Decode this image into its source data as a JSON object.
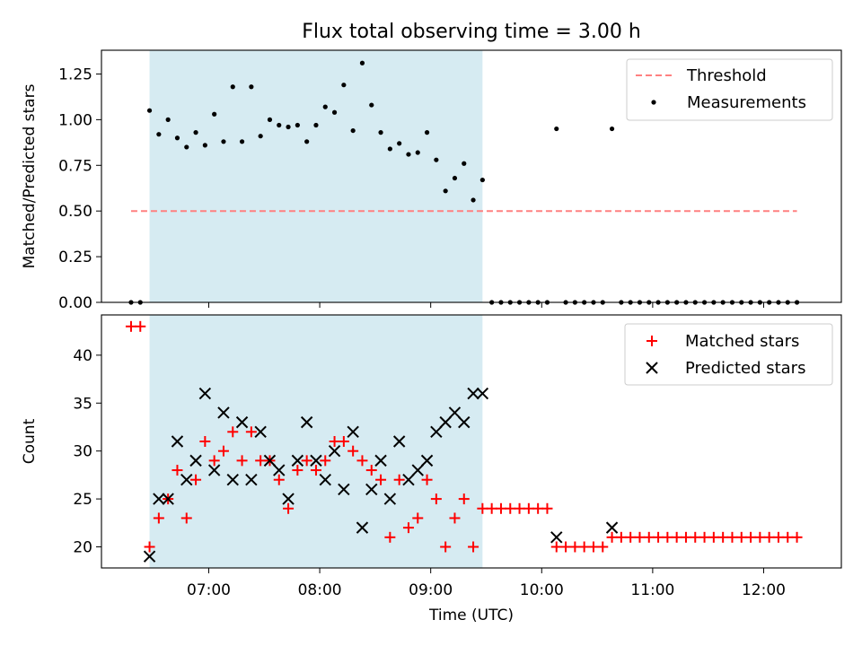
{
  "title": "Flux total observing time = 3.00 h",
  "colors": {
    "shade": "#add8e6",
    "threshold": "#ff8080",
    "matched": "#ff0000",
    "predicted": "#000000",
    "measurement": "#000000"
  },
  "chart_data": [
    {
      "type": "scatter",
      "ylabel": "Matched/Predicted stars",
      "xlabel": "",
      "xlim": [
        "06:02",
        "12:42"
      ],
      "ylim": [
        0,
        1.38
      ],
      "yticks": [
        "0.00",
        "0.25",
        "0.50",
        "0.75",
        "1.00",
        "1.25"
      ],
      "shaded_span": [
        "06:28",
        "09:28"
      ],
      "legend_position": "upper right",
      "threshold": {
        "name": "Threshold",
        "value": 0.5,
        "x_range": [
          "06:18",
          "12:18"
        ]
      },
      "series": [
        {
          "name": "Measurements",
          "x": [
            "06:18",
            "06:23",
            "06:28",
            "06:33",
            "06:38",
            "06:43",
            "06:48",
            "06:53",
            "06:58",
            "07:03",
            "07:08",
            "07:13",
            "07:18",
            "07:23",
            "07:28",
            "07:33",
            "07:38",
            "07:43",
            "07:48",
            "07:53",
            "07:58",
            "08:03",
            "08:08",
            "08:13",
            "08:18",
            "08:23",
            "08:28",
            "08:33",
            "08:38",
            "08:43",
            "08:48",
            "08:53",
            "08:58",
            "09:03",
            "09:08",
            "09:13",
            "09:18",
            "09:23",
            "09:28",
            "09:33",
            "09:38",
            "09:43",
            "09:48",
            "09:53",
            "09:58",
            "10:03",
            "10:08",
            "10:13",
            "10:18",
            "10:23",
            "10:28",
            "10:33",
            "10:38",
            "10:43",
            "10:48",
            "10:53",
            "10:58",
            "11:03",
            "11:08",
            "11:13",
            "11:18",
            "11:23",
            "11:28",
            "11:33",
            "11:38",
            "11:43",
            "11:48",
            "11:53",
            "11:58",
            "12:03",
            "12:08",
            "12:13",
            "12:18"
          ],
          "y": [
            0.0,
            0.0,
            1.05,
            0.92,
            1.0,
            0.9,
            0.85,
            0.93,
            0.86,
            1.03,
            0.88,
            1.18,
            0.88,
            1.18,
            0.91,
            1.0,
            0.97,
            0.96,
            0.97,
            0.88,
            0.97,
            1.07,
            1.04,
            1.19,
            0.94,
            1.31,
            1.08,
            0.93,
            0.84,
            0.87,
            0.81,
            0.82,
            0.93,
            0.78,
            0.61,
            0.68,
            0.76,
            0.56,
            0.67,
            0.0,
            0.0,
            0.0,
            0.0,
            0.0,
            0.0,
            0.0,
            0.95,
            0.0,
            0.0,
            0.0,
            0.0,
            0.0,
            0.95,
            0.0,
            0.0,
            0.0,
            0.0,
            0.0,
            0.0,
            0.0,
            0.0,
            0.0,
            0.0,
            0.0,
            0.0,
            0.0,
            0.0,
            0.0,
            0.0,
            0.0,
            0.0,
            0.0,
            0.0
          ]
        }
      ]
    },
    {
      "type": "scatter",
      "ylabel": "Count",
      "xlabel": "Time (UTC)",
      "xlim": [
        "06:02",
        "12:42"
      ],
      "ylim": [
        17.8,
        44.2
      ],
      "yticks": [
        "20",
        "25",
        "30",
        "35",
        "40"
      ],
      "xticks": [
        "07:00",
        "08:00",
        "09:00",
        "10:00",
        "11:00",
        "12:00"
      ],
      "shaded_span": [
        "06:28",
        "09:28"
      ],
      "legend_position": "upper right",
      "series": [
        {
          "name": "Matched stars",
          "marker": "plus",
          "x": [
            "06:18",
            "06:23",
            "06:28",
            "06:33",
            "06:38",
            "06:43",
            "06:48",
            "06:53",
            "06:58",
            "07:03",
            "07:08",
            "07:13",
            "07:18",
            "07:23",
            "07:28",
            "07:33",
            "07:38",
            "07:43",
            "07:48",
            "07:53",
            "07:58",
            "08:03",
            "08:08",
            "08:13",
            "08:18",
            "08:23",
            "08:28",
            "08:33",
            "08:38",
            "08:43",
            "08:48",
            "08:53",
            "08:58",
            "09:03",
            "09:08",
            "09:13",
            "09:18",
            "09:23",
            "09:28",
            "09:33",
            "09:38",
            "09:43",
            "09:48",
            "09:53",
            "09:58",
            "10:03",
            "10:08",
            "10:13",
            "10:18",
            "10:23",
            "10:28",
            "10:33",
            "10:38",
            "10:43",
            "10:48",
            "10:53",
            "10:58",
            "11:03",
            "11:08",
            "11:13",
            "11:18",
            "11:23",
            "11:28",
            "11:33",
            "11:38",
            "11:43",
            "11:48",
            "11:53",
            "11:58",
            "12:03",
            "12:08",
            "12:13",
            "12:18"
          ],
          "y": [
            43,
            43,
            20,
            23,
            25,
            28,
            23,
            27,
            31,
            29,
            30,
            32,
            29,
            32,
            29,
            29,
            27,
            24,
            28,
            29,
            28,
            29,
            31,
            31,
            30,
            29,
            28,
            27,
            21,
            27,
            22,
            23,
            27,
            25,
            20,
            23,
            25,
            20,
            24,
            24,
            24,
            24,
            24,
            24,
            24,
            24,
            20,
            20,
            20,
            20,
            20,
            20,
            21,
            21,
            21,
            21,
            21,
            21,
            21,
            21,
            21,
            21,
            21,
            21,
            21,
            21,
            21,
            21,
            21,
            21,
            21,
            21,
            21
          ]
        },
        {
          "name": "Predicted stars",
          "marker": "x",
          "x": [
            "06:28",
            "06:33",
            "06:38",
            "06:43",
            "06:48",
            "06:53",
            "06:58",
            "07:03",
            "07:08",
            "07:13",
            "07:18",
            "07:23",
            "07:28",
            "07:33",
            "07:38",
            "07:43",
            "07:48",
            "07:53",
            "07:58",
            "08:03",
            "08:08",
            "08:13",
            "08:18",
            "08:23",
            "08:28",
            "08:33",
            "08:38",
            "08:43",
            "08:48",
            "08:53",
            "08:58",
            "09:03",
            "09:08",
            "09:13",
            "09:18",
            "09:23",
            "09:28",
            "10:08",
            "10:38"
          ],
          "y": [
            19,
            25,
            25,
            31,
            27,
            29,
            36,
            28,
            34,
            27,
            33,
            27,
            32,
            29,
            28,
            25,
            29,
            33,
            29,
            27,
            30,
            26,
            32,
            22,
            26,
            29,
            25,
            31,
            27,
            28,
            29,
            32,
            33,
            34,
            33,
            36,
            36,
            21,
            22
          ]
        }
      ]
    }
  ]
}
